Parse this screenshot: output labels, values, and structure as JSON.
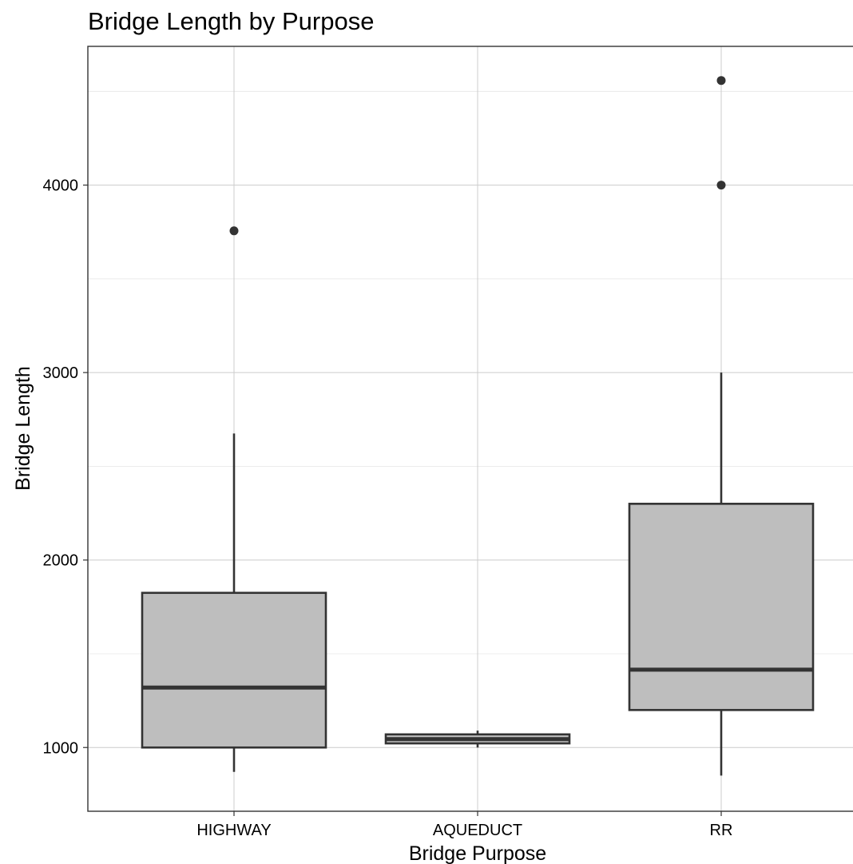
{
  "chart_data": {
    "type": "box",
    "title": "Bridge Length by Purpose",
    "xlabel": "Bridge Purpose",
    "ylabel": "Bridge Length",
    "categories": [
      "HIGHWAY",
      "AQUEDUCT",
      "RR"
    ],
    "boxes": [
      {
        "category": "HIGHWAY",
        "min": 870,
        "q1": 1000,
        "median": 1320,
        "q3": 1825,
        "max": 2675,
        "outliers": [
          3756
        ]
      },
      {
        "category": "AQUEDUCT",
        "min": 1000,
        "q1": 1022,
        "median": 1045,
        "q3": 1070,
        "max": 1090,
        "outliers": []
      },
      {
        "category": "RR",
        "min": 850,
        "q1": 1200,
        "median": 1415,
        "q3": 2300,
        "max": 3000,
        "outliers": [
          4000,
          4558
        ]
      }
    ],
    "ylim": [
      660,
      4740
    ],
    "yticks": [
      1000,
      2000,
      3000,
      4000
    ],
    "y_minor_ticks": [
      1500,
      2500,
      3500,
      4500
    ],
    "grid": true,
    "colors": {
      "box_fill": "#bebebe",
      "box_line": "#333333",
      "grid": "#cccccc"
    }
  }
}
